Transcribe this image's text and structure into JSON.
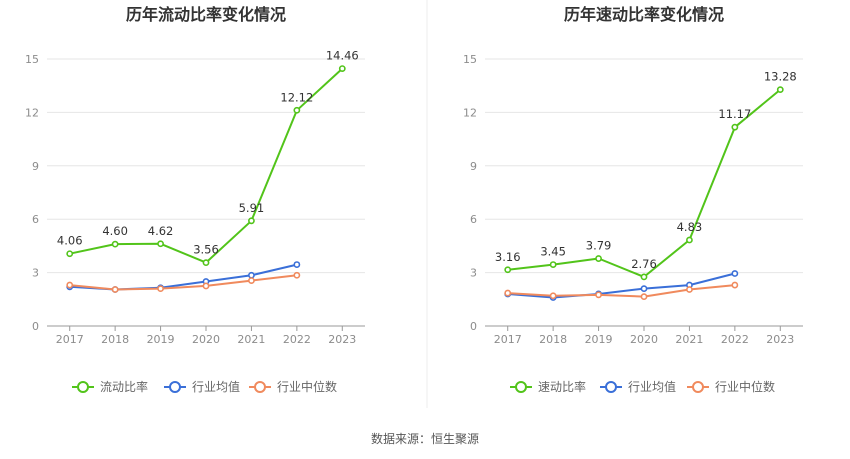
{
  "source": "数据来源：恒生聚源",
  "colors": {
    "primary": "#52c41a",
    "average": "#3a6fd8",
    "median": "#f08a5d",
    "grid": "#e6e6e6",
    "axis": "#999999"
  },
  "chart_data": [
    {
      "type": "line",
      "title": "历年流动比率变化情况",
      "x": [
        "2017",
        "2018",
        "2019",
        "2020",
        "2021",
        "2022",
        "2023"
      ],
      "ylim": [
        0,
        15
      ],
      "yticks": [
        0,
        3,
        6,
        9,
        12,
        15
      ],
      "grid": true,
      "legend_position": "bottom",
      "series": [
        {
          "name": "流动比率",
          "values": [
            4.06,
            4.6,
            4.62,
            3.56,
            5.91,
            12.12,
            14.46
          ],
          "labels": [
            "4.06",
            "4.60",
            "4.62",
            "3.56",
            "5.91",
            "12.12",
            "14.46"
          ],
          "show_labels": true,
          "color": "#52c41a"
        },
        {
          "name": "行业均值",
          "values": [
            2.2,
            2.05,
            2.15,
            2.5,
            2.85,
            3.45,
            null
          ],
          "show_labels": false,
          "color": "#3a6fd8"
        },
        {
          "name": "行业中位数",
          "values": [
            2.3,
            2.05,
            2.1,
            2.25,
            2.55,
            2.85,
            null
          ],
          "show_labels": false,
          "color": "#f08a5d"
        }
      ]
    },
    {
      "type": "line",
      "title": "历年速动比率变化情况",
      "x": [
        "2017",
        "2018",
        "2019",
        "2020",
        "2021",
        "2022",
        "2023"
      ],
      "ylim": [
        0,
        15
      ],
      "yticks": [
        0,
        3,
        6,
        9,
        12,
        15
      ],
      "grid": true,
      "legend_position": "bottom",
      "series": [
        {
          "name": "速动比率",
          "values": [
            3.16,
            3.45,
            3.79,
            2.76,
            4.83,
            11.17,
            13.28
          ],
          "labels": [
            "3.16",
            "3.45",
            "3.79",
            "2.76",
            "4.83",
            "11.17",
            "13.28"
          ],
          "show_labels": true,
          "color": "#52c41a"
        },
        {
          "name": "行业均值",
          "values": [
            1.8,
            1.6,
            1.8,
            2.1,
            2.3,
            2.95,
            null
          ],
          "show_labels": false,
          "color": "#3a6fd8"
        },
        {
          "name": "行业中位数",
          "values": [
            1.85,
            1.7,
            1.75,
            1.65,
            2.05,
            2.3,
            null
          ],
          "show_labels": false,
          "color": "#f08a5d"
        }
      ]
    }
  ]
}
